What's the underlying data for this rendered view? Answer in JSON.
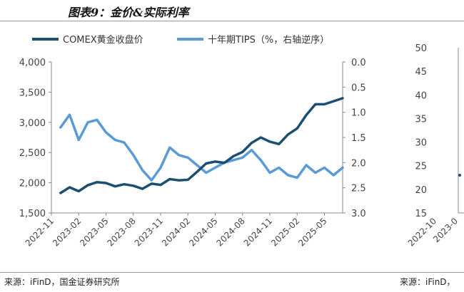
{
  "figure_title": "图表9：金价&实际利率",
  "source_left": "来源：iFinD，国金证券研究所",
  "source_right": "来源：iFinD，",
  "colors": {
    "gold": "#1b4f72",
    "tips": "#5b9bd5",
    "axis": "#888888",
    "text": "#444444"
  },
  "chart_data": [
    {
      "type": "line",
      "legend_position": "top",
      "grid": false,
      "y_left": {
        "ylim": [
          1500,
          4000
        ],
        "ticks": [
          "1,500",
          "2,000",
          "2,500",
          "3,000",
          "3,500",
          "4,000"
        ],
        "tick_values": [
          1500,
          2000,
          2500,
          3000,
          3500,
          4000
        ]
      },
      "y_right": {
        "ylim": [
          0.0,
          3.0
        ],
        "inverted": true,
        "ticks": [
          "0.0",
          "0.5",
          "1.0",
          "1.5",
          "2.0",
          "2.5",
          "3.0"
        ],
        "tick_values": [
          0.0,
          0.5,
          1.0,
          1.5,
          2.0,
          2.5,
          3.0
        ]
      },
      "x_tick_labels": [
        "2022-11",
        "2023-02",
        "2023-05",
        "2023-08",
        "2023-11",
        "2024-02",
        "2024-05",
        "2024-08",
        "2024-11",
        "2025-02",
        "2025-05"
      ],
      "x": [
        "2022-12",
        "2023-01",
        "2023-02",
        "2023-03",
        "2023-04",
        "2023-05",
        "2023-06",
        "2023-07",
        "2023-08",
        "2023-09",
        "2023-10",
        "2023-11",
        "2023-12",
        "2024-01",
        "2024-02",
        "2024-03",
        "2024-04",
        "2024-05",
        "2024-06",
        "2024-07",
        "2024-08",
        "2024-09",
        "2024-10",
        "2024-11",
        "2024-12",
        "2025-01",
        "2025-02",
        "2025-03",
        "2025-04",
        "2025-05",
        "2025-06",
        "2025-07"
      ],
      "series": [
        {
          "name": "COMEX黄金收盘价",
          "axis": "left",
          "values": [
            1830,
            1925,
            1860,
            1960,
            2010,
            1995,
            1940,
            1975,
            1950,
            1900,
            1985,
            1965,
            2060,
            2040,
            2050,
            2180,
            2320,
            2350,
            2330,
            2440,
            2510,
            2660,
            2750,
            2680,
            2640,
            2800,
            2900,
            3120,
            3300,
            3300,
            3350,
            3400
          ]
        },
        {
          "name": "十年期TIPS（%，右轴逆序）",
          "axis": "right",
          "values": [
            1.3,
            1.05,
            1.55,
            1.2,
            1.15,
            1.4,
            1.55,
            1.6,
            1.85,
            2.15,
            2.35,
            2.1,
            1.7,
            1.85,
            1.9,
            2.05,
            2.2,
            2.1,
            2.0,
            1.95,
            1.9,
            1.75,
            1.95,
            2.2,
            2.1,
            2.25,
            2.3,
            2.05,
            2.2,
            2.1,
            2.25,
            2.1
          ]
        }
      ]
    },
    {
      "type": "line",
      "partial": true,
      "y_left": {
        "ylim": [
          15,
          50
        ],
        "ticks": [
          "15",
          "20",
          "25",
          "30",
          "35",
          "40",
          "45",
          "50"
        ],
        "tick_values": [
          15,
          20,
          25,
          30,
          35,
          40,
          45,
          50
        ]
      },
      "x_tick_labels": [
        "2022-10",
        "2023-0"
      ],
      "series": [
        {
          "values": [
            23
          ]
        }
      ]
    }
  ]
}
